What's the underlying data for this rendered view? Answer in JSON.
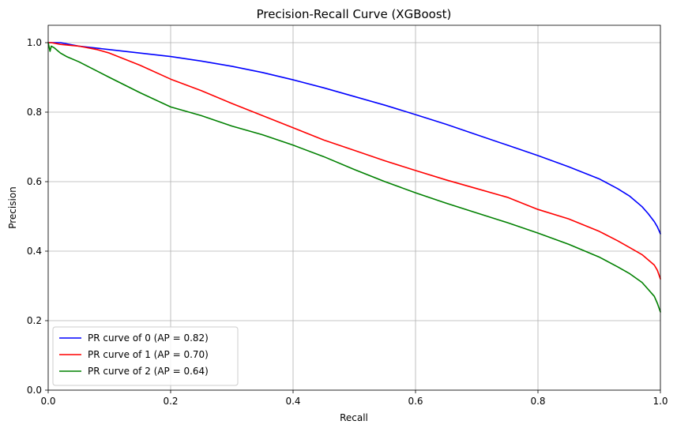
{
  "chart_data": {
    "type": "line",
    "title": "Precision-Recall Curve (XGBoost)",
    "xlabel": "Recall",
    "ylabel": "Precision",
    "xlim": [
      0,
      1
    ],
    "ylim": [
      0,
      1.05
    ],
    "xticks": [
      0,
      0.2,
      0.4,
      0.6,
      0.8,
      1.0
    ],
    "xtick_labels": [
      "0.0",
      "0.2",
      "0.4",
      "0.6",
      "0.8",
      "1.0"
    ],
    "yticks": [
      0,
      0.2,
      0.4,
      0.6,
      0.8,
      1.0
    ],
    "ytick_labels": [
      "0.0",
      "0.2",
      "0.4",
      "0.6",
      "0.8",
      "1.0"
    ],
    "grid": true,
    "legend_position": "lower-left",
    "series": [
      {
        "name": "PR curve of 0 (AP = 0.82)",
        "color": "#0000ff",
        "x": [
          0,
          0.005,
          0.02,
          0.05,
          0.1,
          0.15,
          0.2,
          0.25,
          0.3,
          0.35,
          0.4,
          0.45,
          0.5,
          0.55,
          0.6,
          0.65,
          0.7,
          0.75,
          0.8,
          0.85,
          0.9,
          0.93,
          0.95,
          0.97,
          0.98,
          0.99,
          0.995,
          1.0
        ],
        "y": [
          1.0,
          1.0,
          1.0,
          0.99,
          0.98,
          0.97,
          0.96,
          0.947,
          0.932,
          0.914,
          0.893,
          0.87,
          0.845,
          0.82,
          0.793,
          0.765,
          0.735,
          0.705,
          0.675,
          0.643,
          0.608,
          0.58,
          0.558,
          0.528,
          0.508,
          0.485,
          0.47,
          0.45
        ]
      },
      {
        "name": "PR curve of 1 (AP = 0.70)",
        "color": "#ff0000",
        "x": [
          0,
          0.005,
          0.02,
          0.05,
          0.08,
          0.1,
          0.15,
          0.2,
          0.25,
          0.3,
          0.35,
          0.4,
          0.45,
          0.5,
          0.55,
          0.6,
          0.65,
          0.7,
          0.75,
          0.8,
          0.85,
          0.9,
          0.93,
          0.95,
          0.97,
          0.98,
          0.99,
          0.995,
          1.0
        ],
        "y": [
          1.0,
          1.0,
          0.995,
          0.99,
          0.98,
          0.97,
          0.935,
          0.895,
          0.862,
          0.825,
          0.79,
          0.755,
          0.72,
          0.69,
          0.66,
          0.632,
          0.605,
          0.58,
          0.555,
          0.52,
          0.493,
          0.457,
          0.43,
          0.41,
          0.39,
          0.375,
          0.36,
          0.345,
          0.32
        ]
      },
      {
        "name": "PR curve of 2 (AP = 0.64)",
        "color": "#008000",
        "x": [
          0,
          0.003,
          0.005,
          0.01,
          0.02,
          0.03,
          0.05,
          0.08,
          0.1,
          0.15,
          0.2,
          0.25,
          0.3,
          0.35,
          0.4,
          0.45,
          0.5,
          0.55,
          0.6,
          0.65,
          0.7,
          0.75,
          0.8,
          0.85,
          0.9,
          0.93,
          0.95,
          0.97,
          0.98,
          0.99,
          0.995,
          1.0
        ],
        "y": [
          1.0,
          0.975,
          0.99,
          0.985,
          0.97,
          0.96,
          0.945,
          0.918,
          0.9,
          0.856,
          0.815,
          0.79,
          0.76,
          0.735,
          0.705,
          0.672,
          0.635,
          0.6,
          0.568,
          0.538,
          0.51,
          0.482,
          0.452,
          0.42,
          0.383,
          0.355,
          0.335,
          0.31,
          0.29,
          0.27,
          0.25,
          0.225
        ]
      }
    ]
  }
}
